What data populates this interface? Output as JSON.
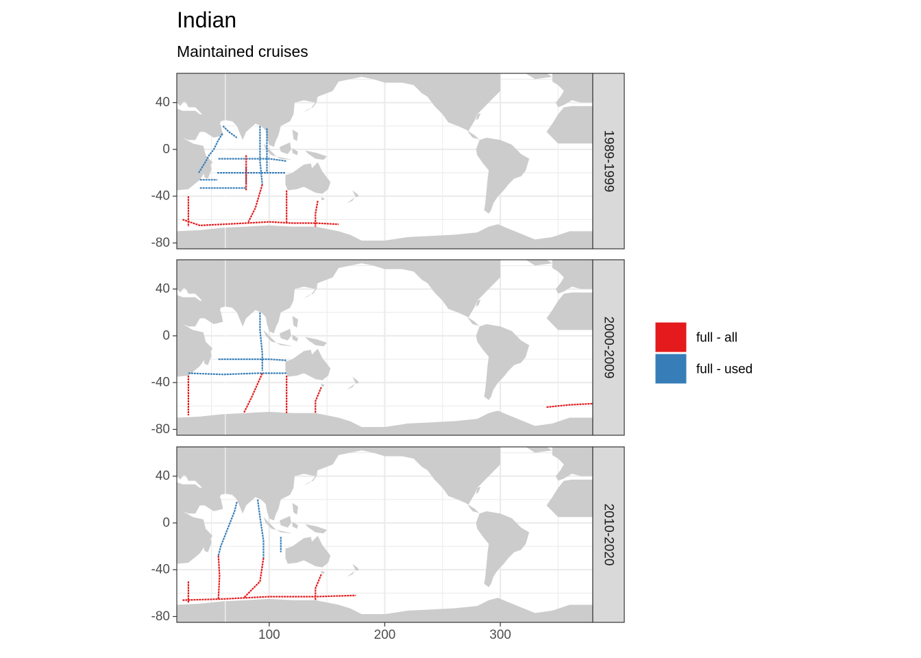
{
  "title": "Indian",
  "subtitle": "Maintained cruises",
  "chart_data": {
    "type": "map",
    "facets": [
      "1989-1999",
      "2000-2009",
      "2010-2020"
    ],
    "xlim": [
      20,
      380
    ],
    "ylim": [
      -85,
      65
    ],
    "x_ticks": [
      100,
      200,
      300
    ],
    "x_tick_labels": [
      "100",
      "200",
      "300"
    ],
    "y_ticks": [
      40,
      0,
      -40,
      -80
    ],
    "y_tick_labels": [
      "40",
      "0",
      "-40",
      "-80"
    ],
    "grid": true,
    "legend_position": "right",
    "colors": {
      "full - all": "#e41a1c",
      "full - used": "#377eb8",
      "land": "#cccccc"
    },
    "legend": [
      {
        "label": "full - all",
        "color": "#e41a1c"
      },
      {
        "label": "full - used",
        "color": "#377eb8"
      }
    ],
    "series": [
      {
        "name": "full - used",
        "facet": "1989-1999",
        "tracks": [
          [
            [
              39,
              -20
            ],
            [
              44,
              -12
            ],
            [
              48,
              -5
            ],
            [
              52,
              0
            ],
            [
              56,
              8
            ],
            [
              60,
              14
            ]
          ],
          [
            [
              56,
              -8
            ],
            [
              80,
              -8
            ],
            [
              100,
              -8
            ],
            [
              115,
              -10
            ]
          ],
          [
            [
              40,
              -33
            ],
            [
              60,
              -33
            ],
            [
              80,
              -33
            ]
          ],
          [
            [
              55,
              -20
            ],
            [
              80,
              -20
            ],
            [
              100,
              -20
            ],
            [
              114,
              -20
            ]
          ],
          [
            [
              92,
              20
            ],
            [
              92,
              10
            ],
            [
              92,
              0
            ],
            [
              92,
              -10
            ],
            [
              94,
              -30
            ]
          ],
          [
            [
              80,
              -15
            ],
            [
              80,
              -30
            ]
          ],
          [
            [
              98,
              18
            ],
            [
              98,
              5
            ],
            [
              98,
              -20
            ]
          ],
          [
            [
              40,
              -26
            ],
            [
              55,
              -26
            ]
          ],
          [
            [
              60,
              20
            ],
            [
              65,
              15
            ],
            [
              72,
              10
            ]
          ]
        ]
      },
      {
        "name": "full - all",
        "facet": "1989-1999",
        "tracks": [
          [
            [
              30,
              -40
            ],
            [
              30,
              -55
            ],
            [
              30,
              -66
            ]
          ],
          [
            [
              25,
              -60
            ],
            [
              40,
              -65
            ],
            [
              60,
              -64
            ],
            [
              80,
              -63
            ],
            [
              100,
              -62
            ],
            [
              120,
              -63
            ],
            [
              140,
              -63
            ],
            [
              160,
              -64
            ]
          ],
          [
            [
              94,
              -30
            ],
            [
              88,
              -50
            ],
            [
              82,
              -62
            ]
          ],
          [
            [
              115,
              -35
            ],
            [
              115,
              -62
            ]
          ],
          [
            [
              142,
              -44
            ],
            [
              140,
              -55
            ],
            [
              140,
              -66
            ]
          ],
          [
            [
              80,
              -5
            ],
            [
              80,
              -35
            ]
          ]
        ]
      },
      {
        "name": "full - used",
        "facet": "2000-2009",
        "tracks": [
          [
            [
              92,
              20
            ],
            [
              92,
              5
            ],
            [
              94,
              -15
            ],
            [
              94,
              -30
            ]
          ],
          [
            [
              56,
              -20
            ],
            [
              80,
              -20
            ],
            [
              100,
              -20
            ],
            [
              115,
              -21
            ]
          ],
          [
            [
              30,
              -32
            ],
            [
              60,
              -33
            ],
            [
              90,
              -32
            ],
            [
              115,
              -32
            ]
          ]
        ]
      },
      {
        "name": "full - all",
        "facet": "2000-2009",
        "tracks": [
          [
            [
              30,
              -34
            ],
            [
              30,
              -68
            ]
          ],
          [
            [
              94,
              -32
            ],
            [
              85,
              -52
            ],
            [
              78,
              -66
            ]
          ],
          [
            [
              115,
              -34
            ],
            [
              115,
              -66
            ]
          ],
          [
            [
              145,
              -44
            ],
            [
              140,
              -56
            ],
            [
              140,
              -66
            ]
          ],
          [
            [
              340,
              -61
            ],
            [
              360,
              -59
            ],
            [
              380,
              -58
            ]
          ]
        ]
      },
      {
        "name": "full - used",
        "facet": "2010-2020",
        "tracks": [
          [
            [
              72,
              18
            ],
            [
              70,
              10
            ],
            [
              64,
              -5
            ],
            [
              58,
              -20
            ],
            [
              56,
              -28
            ]
          ],
          [
            [
              90,
              20
            ],
            [
              92,
              5
            ],
            [
              95,
              -15
            ],
            [
              95,
              -30
            ]
          ],
          [
            [
              110,
              -12
            ],
            [
              110,
              -25
            ]
          ]
        ]
      },
      {
        "name": "full - all",
        "facet": "2010-2020",
        "tracks": [
          [
            [
              56,
              -28
            ],
            [
              57,
              -45
            ],
            [
              56,
              -65
            ]
          ],
          [
            [
              95,
              -30
            ],
            [
              92,
              -50
            ],
            [
              78,
              -64
            ]
          ],
          [
            [
              30,
              -50
            ],
            [
              30,
              -68
            ]
          ],
          [
            [
              145,
              -44
            ],
            [
              140,
              -56
            ],
            [
              140,
              -66
            ]
          ],
          [
            [
              25,
              -66
            ],
            [
              60,
              -65
            ],
            [
              100,
              -63
            ],
            [
              140,
              -63
            ],
            [
              175,
              -62
            ]
          ]
        ]
      }
    ]
  }
}
